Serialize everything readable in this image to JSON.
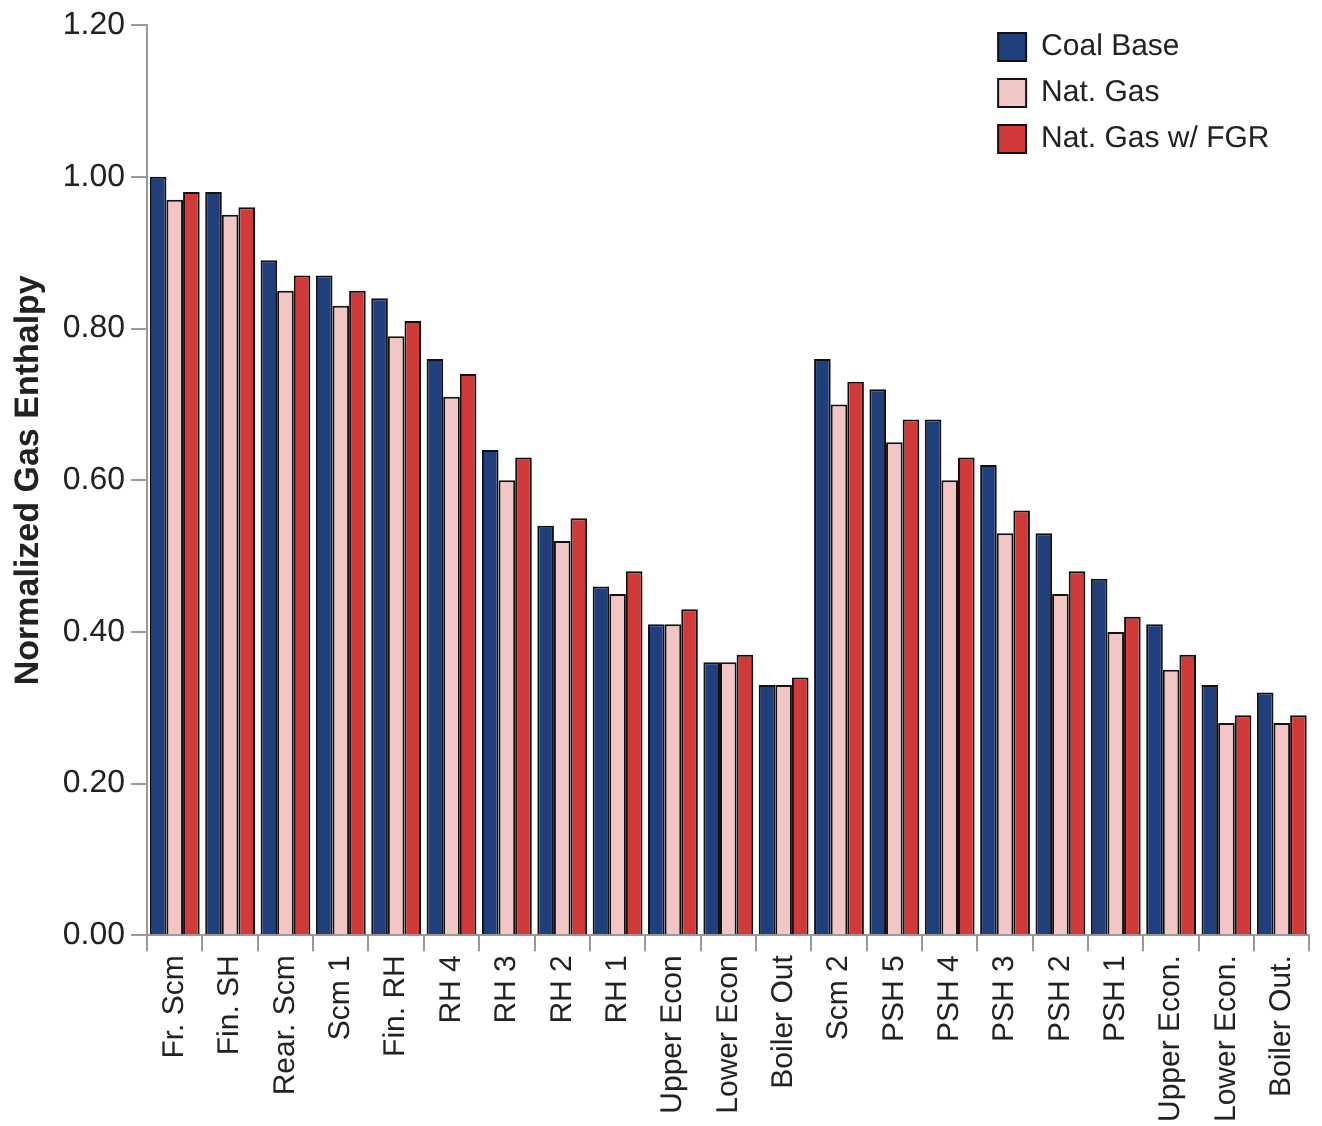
{
  "chart_data": {
    "type": "bar",
    "ylabel": "Normalized Gas Enthalpy",
    "categories": [
      "Fr. Scm",
      "Fin. SH",
      "Rear. Scm",
      "Scm 1",
      "Fin. RH",
      "RH 4",
      "RH 3",
      "RH 2",
      "RH 1",
      "Upper Econ",
      "Lower Econ",
      "Boiler Out",
      "Scm 2",
      "PSH 5",
      "PSH 4",
      "PSH 3",
      "PSH 2",
      "PSH 1",
      "Upper Econ.",
      "Lower Econ.",
      "Boiler Out."
    ],
    "series": [
      {
        "name": "Coal Base",
        "color": "#1f3f7d",
        "values": [
          1.0,
          0.98,
          0.89,
          0.87,
          0.84,
          0.76,
          0.64,
          0.54,
          0.46,
          0.41,
          0.36,
          0.33,
          0.76,
          0.72,
          0.68,
          0.62,
          0.53,
          0.47,
          0.41,
          0.33,
          0.32
        ]
      },
      {
        "name": "Nat. Gas",
        "color": "#f2c6c4",
        "values": [
          0.97,
          0.95,
          0.85,
          0.83,
          0.79,
          0.71,
          0.6,
          0.52,
          0.45,
          0.41,
          0.36,
          0.33,
          0.7,
          0.65,
          0.6,
          0.53,
          0.45,
          0.4,
          0.35,
          0.28,
          0.28
        ]
      },
      {
        "name": "Nat. Gas w/ FGR",
        "color": "#d23a3a",
        "values": [
          0.98,
          0.96,
          0.87,
          0.85,
          0.81,
          0.74,
          0.63,
          0.55,
          0.48,
          0.43,
          0.37,
          0.34,
          0.73,
          0.68,
          0.63,
          0.56,
          0.48,
          0.42,
          0.37,
          0.29,
          0.29
        ]
      }
    ],
    "ylim": [
      0,
      1.2
    ],
    "yticks": [
      {
        "value": 0,
        "label": "0.00"
      },
      {
        "value": 0.2,
        "label": "0.20"
      },
      {
        "value": 0.4,
        "label": "0.40"
      },
      {
        "value": 0.6,
        "label": "0.60"
      },
      {
        "value": 0.8,
        "label": "0.80"
      },
      {
        "value": 1.0,
        "label": "1.00"
      },
      {
        "value": 1.2,
        "label": "1.20"
      }
    ],
    "grid": false,
    "legend": "top right"
  }
}
